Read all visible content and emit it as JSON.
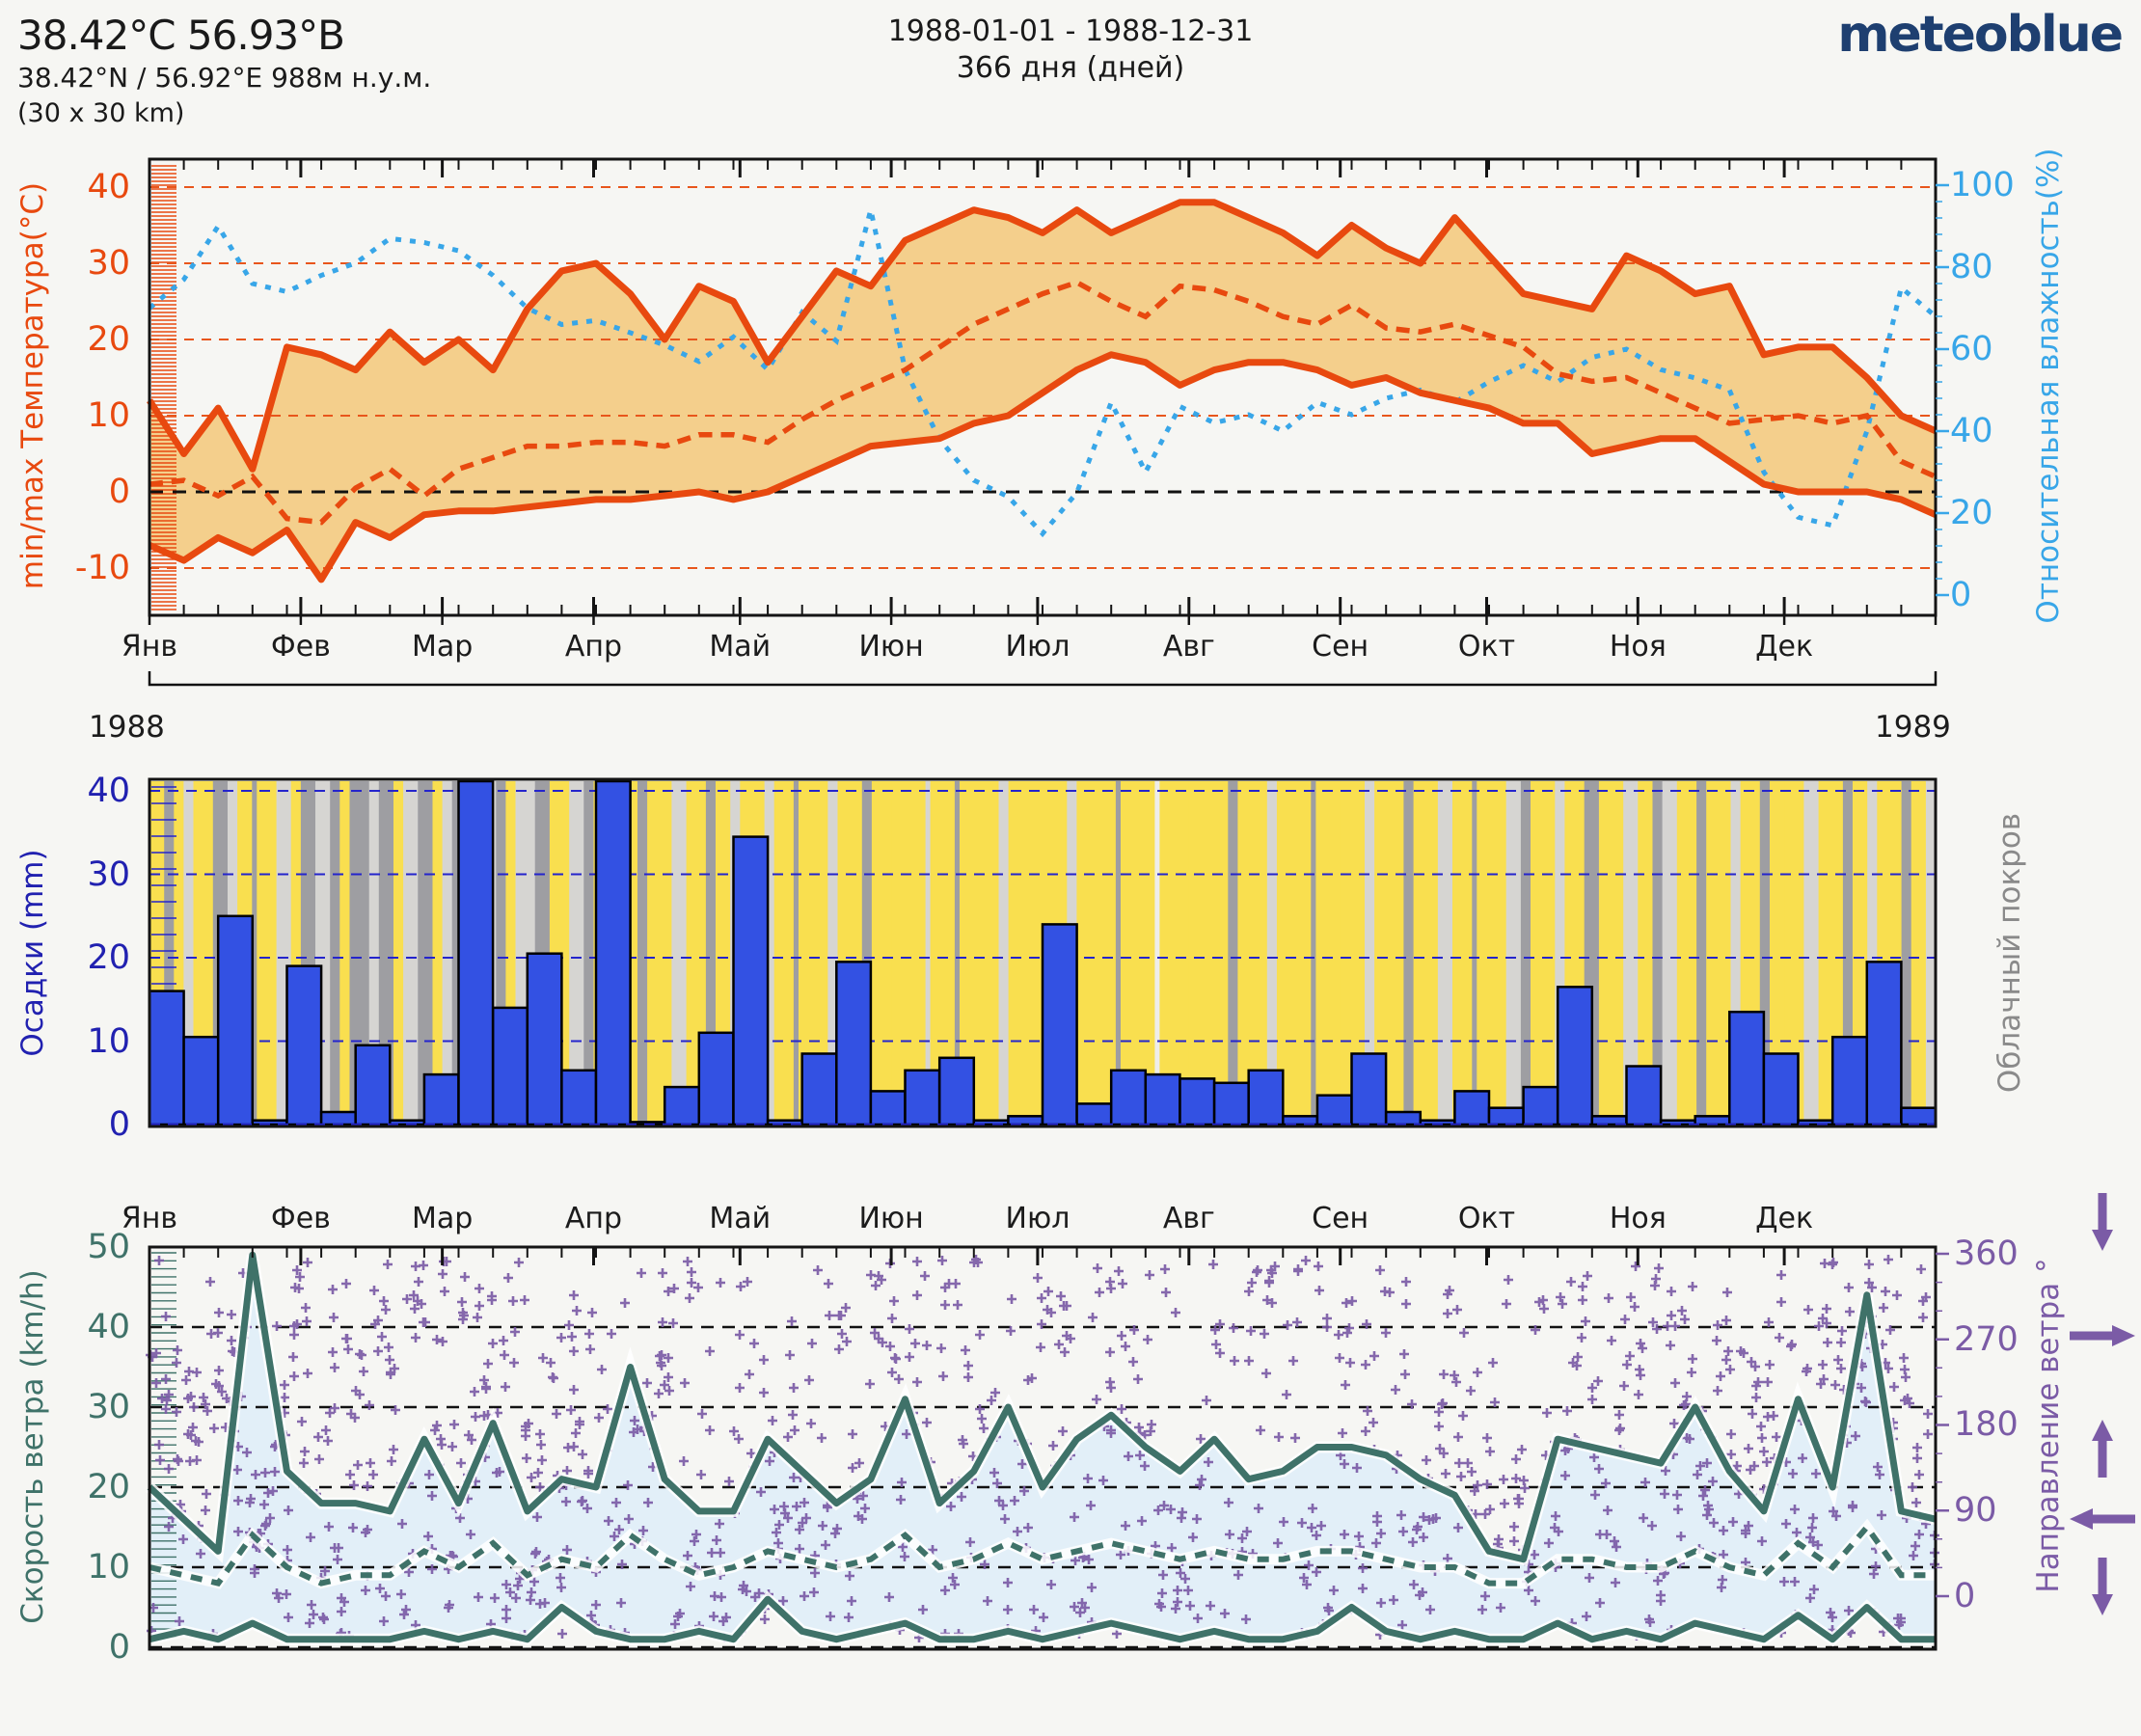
{
  "header": {
    "title": "38.42°С 56.93°В",
    "subtitle": "38.42°N / 56.92°E   988м н.у.м.",
    "cell_size": "(30 x 30 km)",
    "date_range": "1988-01-01 - 1988-12-31",
    "day_count": "366 дня (дней)",
    "brand": "meteoblue"
  },
  "months": [
    "Янв",
    "Фев",
    "Мар",
    "Апр",
    "Май",
    "Июн",
    "Июл",
    "Авг",
    "Сен",
    "Окт",
    "Ноя",
    "Дек"
  ],
  "years": {
    "start": "1988",
    "end": "1989"
  },
  "axes": {
    "temp": {
      "label": "min/max Температура(°C)",
      "ticks": [
        40,
        30,
        20,
        10,
        0,
        -10
      ]
    },
    "humidity": {
      "label": "Относительная влажность(%)",
      "ticks": [
        100,
        80,
        60,
        40,
        20,
        0
      ]
    },
    "precip": {
      "label": "Осадки (mm)",
      "ticks": [
        40,
        30,
        20,
        10,
        0
      ]
    },
    "cloud": {
      "label": "Облачный покров"
    },
    "wind": {
      "label": "Скорость ветра (km/h)",
      "ticks": [
        50,
        40,
        30,
        20,
        10,
        0
      ]
    },
    "direction": {
      "label": "Направление ветра °",
      "ticks": [
        360,
        270,
        180,
        90,
        0
      ],
      "arrows": [
        "down",
        "right",
        "up",
        "left",
        "down"
      ]
    }
  },
  "colors": {
    "temp_line": "#e8490f",
    "temp_band": "#f4cf8c",
    "temp_grid": "#e8561c",
    "humidity": "#38a6e8",
    "precip_bar": "#3351e3",
    "precip_text": "#2121b0",
    "grid_blue": "#2424cc",
    "cloud_sun": "#f9df4f",
    "cloud_overcast": "#9e9ea2",
    "cloud_partly": "#d6d5d2",
    "cloud_clear": "#eeede9",
    "wind": "#3f7269",
    "wind_band": "#e2eff8",
    "direction": "#7b5ba6",
    "frame": "#141414",
    "text": "#1a1a1a",
    "brand": "#1e3f70"
  },
  "chart_data": [
    {
      "type": "area",
      "name": "temperature-humidity",
      "ylabel": "min/max Температура(°C)",
      "y2label": "Относительная влажность(%)",
      "ylim": [
        -16,
        43
      ],
      "y2lim": [
        0,
        100
      ],
      "x_unit": "week-of-year (0-52, Jan-Dec 1988)",
      "grid": {
        "orange_dashed_at": [
          40,
          30,
          20,
          10,
          -10
        ],
        "black_dashed_at": [
          0
        ]
      },
      "series": [
        {
          "name": "temp_max_c",
          "values": [
            12,
            5,
            11,
            3,
            19,
            18,
            16,
            21,
            17,
            20,
            16,
            24,
            29,
            30,
            26,
            20,
            27,
            25,
            17,
            23,
            29,
            27,
            33,
            35,
            37,
            36,
            34,
            37,
            34,
            36,
            38,
            38,
            36,
            34,
            31,
            35,
            32,
            30,
            36,
            31,
            26,
            25,
            24,
            31,
            29,
            26,
            27,
            18,
            19,
            19,
            15,
            10,
            8
          ]
        },
        {
          "name": "temp_mean_c",
          "style": "dashed",
          "values": [
            1,
            1.5,
            -0.5,
            2,
            -3.5,
            -4,
            0.5,
            3,
            -0.5,
            3,
            4.5,
            6,
            6,
            6.5,
            6.5,
            6,
            7.5,
            7.5,
            6.5,
            9.5,
            12,
            14,
            16,
            19,
            22,
            24,
            26,
            27.5,
            25,
            23,
            27,
            26.5,
            25,
            23,
            22,
            24.5,
            21.5,
            21,
            22,
            20.5,
            19,
            15.5,
            14.5,
            15,
            13,
            11,
            9,
            9.5,
            10,
            9,
            10,
            4,
            2
          ]
        },
        {
          "name": "temp_min_c",
          "values": [
            -7,
            -9,
            -6,
            -8,
            -5,
            -11.5,
            -4,
            -6,
            -3,
            -2.5,
            -2.5,
            -2,
            -1.5,
            -1,
            -1,
            -0.5,
            0,
            -1,
            0,
            2,
            4,
            6,
            6.5,
            7,
            9,
            10,
            13,
            16,
            18,
            17,
            14,
            16,
            17,
            17,
            16,
            14,
            15,
            13,
            12,
            11,
            9,
            9,
            5,
            6,
            7,
            7,
            4,
            1,
            0,
            0,
            0,
            -1,
            -3
          ]
        },
        {
          "name": "rel_humidity_pct",
          "axis": "right",
          "style": "dotted",
          "values": [
            70,
            77,
            90,
            76,
            74,
            78,
            81,
            87,
            86,
            84,
            78,
            70,
            66,
            67,
            64,
            61,
            57,
            63,
            55,
            69,
            62,
            94,
            55,
            38,
            28,
            24,
            15,
            25,
            47,
            30,
            46,
            42,
            44,
            40,
            47,
            44,
            48,
            50,
            47,
            52,
            56,
            52,
            58,
            60,
            55,
            53,
            50,
            30,
            19,
            17,
            40,
            75,
            68
          ]
        }
      ]
    },
    {
      "type": "bar",
      "name": "precipitation-cloudcover",
      "ylabel": "Осадки (mm)",
      "y2label": "Облачный покров",
      "ylim": [
        0,
        41.5
      ],
      "x_unit": "week-of-year (52 bars)",
      "bar_values_mm": [
        16,
        10.5,
        25,
        0.5,
        19,
        1.5,
        9.5,
        0.5,
        6,
        41.5,
        14,
        20.5,
        6.5,
        41.5,
        0.3,
        4.5,
        11,
        34.5,
        0.5,
        8.5,
        19.5,
        4,
        6.5,
        8,
        0.5,
        1,
        24,
        2.5,
        6.5,
        6,
        5.5,
        5,
        6.5,
        1,
        3.5,
        8.5,
        1.5,
        0.5,
        4,
        2,
        4.5,
        16.5,
        1,
        7,
        0.5,
        1,
        13.5,
        8.5,
        0.5,
        10.5,
        19.5,
        2
      ],
      "cloud_legend": {
        "y": "sunny",
        "l": "partly-cloudy",
        "g": "overcast",
        "w": "clear"
      },
      "cloud_cover_segments": [
        [
          3,
          "y"
        ],
        [
          2,
          "g"
        ],
        [
          2,
          "y"
        ],
        [
          2,
          "l"
        ],
        [
          4,
          "y"
        ],
        [
          3,
          "g"
        ],
        [
          2,
          "l"
        ],
        [
          3,
          "y"
        ],
        [
          1,
          "g"
        ],
        [
          4,
          "y"
        ],
        [
          3,
          "l"
        ],
        [
          2,
          "y"
        ],
        [
          3,
          "g"
        ],
        [
          3,
          "l"
        ],
        [
          2,
          "g"
        ],
        [
          2,
          "y"
        ],
        [
          4,
          "g"
        ],
        [
          2,
          "l"
        ],
        [
          3,
          "g"
        ],
        [
          2,
          "y"
        ],
        [
          3,
          "l"
        ],
        [
          3,
          "g"
        ],
        [
          2,
          "y"
        ],
        [
          2,
          "l"
        ],
        [
          3,
          "g"
        ],
        [
          3,
          "y"
        ],
        [
          3,
          "l"
        ],
        [
          2,
          "g"
        ],
        [
          2,
          "y"
        ],
        [
          4,
          "l"
        ],
        [
          3,
          "g"
        ],
        [
          4,
          "y"
        ],
        [
          3,
          "l"
        ],
        [
          2,
          "g"
        ],
        [
          4,
          "y"
        ],
        [
          2,
          "l"
        ],
        [
          3,
          "y"
        ],
        [
          2,
          "g"
        ],
        [
          5,
          "y"
        ],
        [
          3,
          "l"
        ],
        [
          4,
          "y"
        ],
        [
          2,
          "g"
        ],
        [
          3,
          "y"
        ],
        [
          2,
          "l"
        ],
        [
          5,
          "y"
        ],
        [
          2,
          "l"
        ],
        [
          4,
          "y"
        ],
        [
          1,
          "g"
        ],
        [
          6,
          "y"
        ],
        [
          2,
          "l"
        ],
        [
          5,
          "y"
        ],
        [
          2,
          "g"
        ],
        [
          4,
          "y"
        ],
        [
          7,
          "y"
        ],
        [
          1,
          "l"
        ],
        [
          5,
          "y"
        ],
        [
          1,
          "g"
        ],
        [
          8,
          "y"
        ],
        [
          2,
          "l"
        ],
        [
          6,
          "y"
        ],
        [
          6,
          "y"
        ],
        [
          2,
          "l"
        ],
        [
          8,
          "y"
        ],
        [
          1,
          "g"
        ],
        [
          7,
          "y"
        ],
        [
          1,
          "w"
        ],
        [
          6,
          "y"
        ],
        [
          8,
          "y"
        ],
        [
          2,
          "g"
        ],
        [
          6,
          "y"
        ],
        [
          2,
          "l"
        ],
        [
          7,
          "y"
        ],
        [
          1,
          "g"
        ],
        [
          5,
          "y"
        ],
        [
          5,
          "y"
        ],
        [
          2,
          "l"
        ],
        [
          6,
          "y"
        ],
        [
          2,
          "g"
        ],
        [
          5,
          "y"
        ],
        [
          3,
          "l"
        ],
        [
          4,
          "y"
        ],
        [
          1,
          "g"
        ],
        [
          2,
          "y"
        ],
        [
          4,
          "y"
        ],
        [
          3,
          "l"
        ],
        [
          2,
          "g"
        ],
        [
          5,
          "y"
        ],
        [
          2,
          "l"
        ],
        [
          4,
          "y"
        ],
        [
          3,
          "g"
        ],
        [
          5,
          "y"
        ],
        [
          3,
          "l"
        ],
        [
          3,
          "y"
        ],
        [
          2,
          "g"
        ],
        [
          3,
          "l"
        ],
        [
          4,
          "y"
        ],
        [
          2,
          "g"
        ],
        [
          5,
          "y"
        ],
        [
          2,
          "l"
        ],
        [
          4,
          "y"
        ],
        [
          2,
          "g"
        ],
        [
          3,
          "y"
        ],
        [
          4,
          "y"
        ],
        [
          3,
          "l"
        ],
        [
          5,
          "y"
        ],
        [
          2,
          "g"
        ],
        [
          3,
          "y"
        ],
        [
          2,
          "l"
        ],
        [
          5,
          "y"
        ],
        [
          2,
          "g"
        ],
        [
          3,
          "y"
        ],
        [
          2,
          "l"
        ]
      ]
    },
    {
      "type": "line+scatter",
      "name": "wind-speed-direction",
      "ylabel": "Скорость ветра (km/h)",
      "y2label": "Направление ветра °",
      "ylim": [
        0,
        50
      ],
      "y2lim": [
        0,
        360
      ],
      "x_unit": "week-of-year (0-52)",
      "series": [
        {
          "name": "wind_max_kmh",
          "values": [
            20,
            16,
            12,
            49,
            22,
            18,
            18,
            17,
            26,
            18,
            28,
            17,
            21,
            20,
            35,
            21,
            17,
            17,
            26,
            22,
            18,
            21,
            31,
            18,
            22,
            30,
            20,
            26,
            29,
            25,
            22,
            26,
            21,
            22,
            25,
            25,
            24,
            21,
            19,
            12,
            11,
            26,
            25,
            24,
            23,
            30,
            22,
            17,
            31,
            20,
            44,
            17,
            16
          ]
        },
        {
          "name": "wind_mean_kmh",
          "style": "dashed",
          "values": [
            10,
            9,
            8,
            14,
            10,
            8,
            9,
            9,
            12,
            10,
            13,
            9,
            11,
            10,
            14,
            11,
            9,
            10,
            12,
            11,
            10,
            11,
            14,
            10,
            11,
            13,
            11,
            12,
            13,
            12,
            11,
            12,
            11,
            11,
            12,
            12,
            11,
            10,
            10,
            8,
            8,
            11,
            11,
            10,
            10,
            12,
            10,
            9,
            13,
            10,
            15,
            9,
            9
          ]
        },
        {
          "name": "wind_min_kmh",
          "values": [
            1,
            2,
            1,
            3,
            1,
            1,
            1,
            1,
            2,
            1,
            2,
            1,
            5,
            2,
            1,
            1,
            2,
            1,
            6,
            2,
            1,
            2,
            3,
            1,
            1,
            2,
            1,
            2,
            3,
            2,
            1,
            2,
            1,
            1,
            2,
            5,
            2,
            1,
            2,
            1,
            1,
            3,
            1,
            2,
            1,
            3,
            2,
            1,
            4,
            1,
            5,
            1,
            1
          ]
        }
      ],
      "scatter": {
        "name": "wind_direction_deg",
        "marker": "+",
        "seed": 1988,
        "points_per_day_min": 2,
        "points_per_day_max": 5,
        "range_deg": [
          0,
          360
        ]
      }
    }
  ]
}
